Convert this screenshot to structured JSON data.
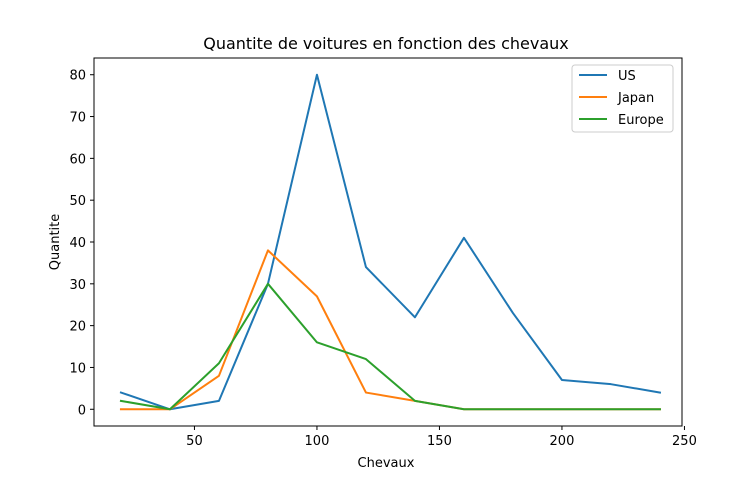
{
  "chart_data": {
    "type": "line",
    "title": "Quantite de voitures en fonction des chevaux",
    "xlabel": "Chevaux",
    "ylabel": "Quantite",
    "xlim": [
      9,
      249
    ],
    "ylim": [
      -4,
      84
    ],
    "xticks": [
      50,
      100,
      150,
      200,
      250
    ],
    "yticks": [
      0,
      10,
      20,
      30,
      40,
      50,
      60,
      70,
      80
    ],
    "x": [
      20,
      40,
      60,
      80,
      100,
      120,
      140,
      160,
      180,
      200,
      220,
      240
    ],
    "grid": false,
    "legend_position": "top-right",
    "series": [
      {
        "name": "US",
        "color": "#1f77b4",
        "values": [
          4,
          0,
          2,
          30,
          80,
          34,
          22,
          41,
          23,
          7,
          6,
          4
        ]
      },
      {
        "name": "Japan",
        "color": "#ff7f0e",
        "values": [
          0,
          0,
          8,
          38,
          27,
          4,
          2,
          0,
          0,
          0,
          0,
          0
        ]
      },
      {
        "name": "Europe",
        "color": "#2ca02c",
        "values": [
          2,
          0,
          11,
          30,
          16,
          12,
          2,
          0,
          0,
          0,
          0,
          0
        ]
      }
    ]
  }
}
